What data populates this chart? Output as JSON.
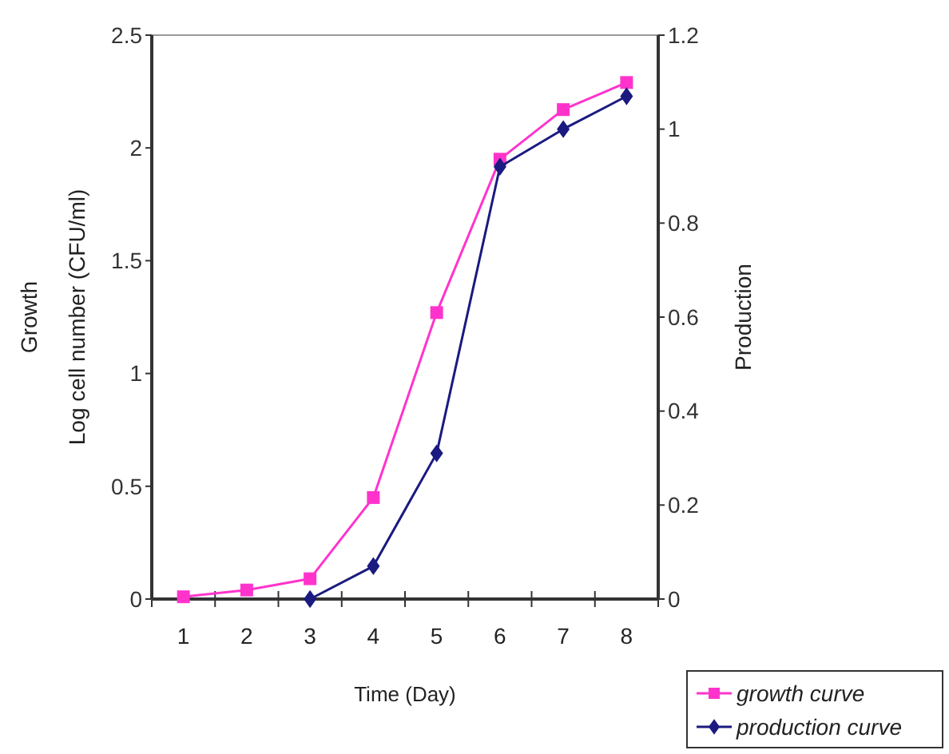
{
  "chart_data": {
    "type": "line",
    "xlabel": "Time (Day)",
    "ylabel": "Growth\nLog cell number (CFU/ml)",
    "y2label": "Production",
    "categories": [
      "1",
      "2",
      "3",
      "4",
      "5",
      "6",
      "7",
      "8"
    ],
    "ylim": [
      0,
      2.5
    ],
    "yticks": [
      0,
      0.5,
      1,
      1.5,
      2,
      2.5
    ],
    "y2lim": [
      0,
      1.2
    ],
    "y2ticks": [
      0,
      0.2,
      0.4,
      0.6,
      0.8,
      1,
      1.2
    ],
    "legend": "bottom right",
    "grid": false,
    "series": [
      {
        "name": "growth curve",
        "color": "#ff33cc",
        "marker": "square",
        "values": [
          0.01,
          0.04,
          0.09,
          0.45,
          1.27,
          1.95,
          2.17,
          2.29
        ]
      },
      {
        "name": "production curve",
        "color": "#1a1a80",
        "marker": "diamond",
        "axis": "y2",
        "values": [
          null,
          null,
          0,
          0.07,
          0.31,
          0.92,
          1.0,
          1.07
        ]
      }
    ]
  }
}
